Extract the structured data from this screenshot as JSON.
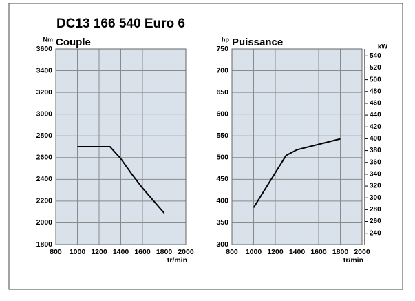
{
  "title": "DC13 166 540 Euro 6",
  "chart_data": [
    {
      "type": "line",
      "title": "Couple",
      "y_label": "Nm",
      "x_label": "tr/min",
      "x": [
        1000,
        1300,
        1400,
        1500,
        1600,
        1800
      ],
      "values": [
        2700,
        2700,
        2590,
        2450,
        2320,
        2090
      ],
      "color": "#000000",
      "xlim": [
        800,
        2000
      ],
      "xticks": [
        800,
        1000,
        1200,
        1400,
        1600,
        1800,
        2000
      ],
      "ylim": [
        1800,
        3600
      ],
      "yticks": [
        1800,
        2000,
        2200,
        2400,
        2600,
        2800,
        3000,
        3200,
        3400,
        3600
      ],
      "grid": true
    },
    {
      "type": "line",
      "title": "Puissance",
      "y_label": "hp",
      "y2_label": "kW",
      "x_label": "tr/min",
      "x": [
        1000,
        1300,
        1400,
        1800
      ],
      "values": [
        385,
        505,
        518,
        543
      ],
      "color": "#000000",
      "xlim": [
        800,
        2000
      ],
      "xticks": [
        800,
        1000,
        1200,
        1400,
        1600,
        1800,
        2000
      ],
      "ylim": [
        300,
        750
      ],
      "yticks": [
        300,
        350,
        400,
        450,
        500,
        550,
        600,
        650,
        700,
        750
      ],
      "y2lim": [
        221,
        552
      ],
      "y2ticks": [
        240,
        260,
        280,
        300,
        320,
        340,
        360,
        380,
        400,
        420,
        440,
        460,
        480,
        500,
        520,
        540
      ],
      "grid": true
    }
  ]
}
